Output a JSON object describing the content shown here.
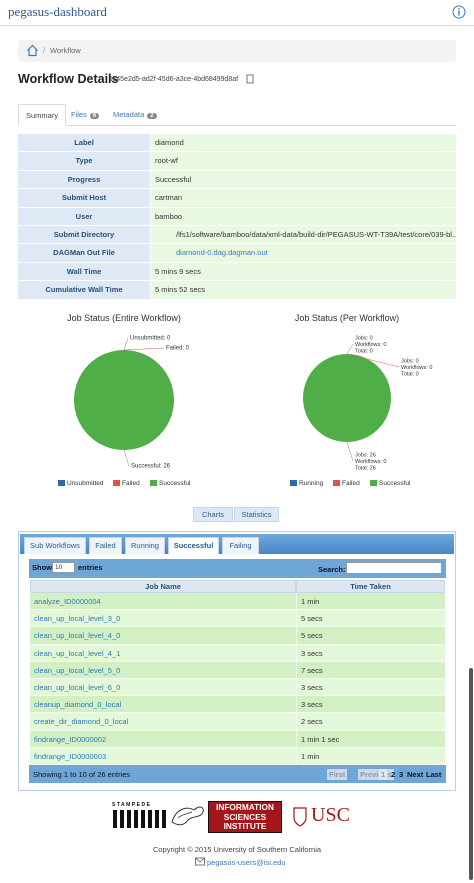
{
  "header": {
    "title": "pegasus-dashboard"
  },
  "breadcrumb": {
    "separator": "/",
    "current": "Workflow"
  },
  "workflow": {
    "title": "Workflow Details",
    "id": "1145e2d5-ad2f-45d6-a3ce-4bd68499d8af"
  },
  "tabs": [
    {
      "label": "Summary"
    },
    {
      "label": "Files",
      "badge": 6
    },
    {
      "label": "Metadata",
      "badge": 2
    }
  ],
  "summary": {
    "rows": [
      [
        "Label",
        "diamond"
      ],
      [
        "Type",
        "root-wf"
      ],
      [
        "Progress",
        "Successful"
      ],
      [
        "Submit Host",
        "cartman"
      ],
      [
        "User",
        "bamboo"
      ],
      [
        "Submit Directory",
        "/lfs1/software/bamboo/data/xml-data/build-dir/PEGASUS-WT-T39A/test/core/039-bl..."
      ],
      [
        "DAGMan Out File",
        "diamond-0.dag.dagman.out"
      ],
      [
        "Wall Time",
        "5 mins 9 secs"
      ],
      [
        "Cumulative Wall Time",
        "5 mins 52 secs"
      ]
    ]
  },
  "chart_data": [
    {
      "type": "pie",
      "title": "Job Status (Entire Workflow)",
      "categories": [
        "Unsubmitted",
        "Failed",
        "Successful"
      ],
      "values": [
        0,
        0,
        26
      ],
      "value_labels": [
        "Unsubmitted: 0",
        "Failed: 0",
        "Successful: 26"
      ],
      "colors": [
        "#2e6aa5",
        "#d9534f",
        "#4fae47"
      ]
    },
    {
      "type": "pie",
      "title": "Job Status (Per Workflow)",
      "categories": [
        "Running",
        "Failed",
        "Successful"
      ],
      "values": [
        0,
        0,
        26
      ],
      "value_labels": [
        [
          "Jobs: 0",
          "Workflows: 0",
          "Total: 0"
        ],
        [
          "Jobs: 0",
          "Workflows: 0",
          "Total: 0"
        ],
        [
          "Jobs: 26",
          "Workflows: 0",
          "Total: 26"
        ]
      ],
      "colors": [
        "#2e6aa5",
        "#d9534f",
        "#4fae47"
      ]
    }
  ],
  "chart_buttons": [
    "Charts",
    "Statistics"
  ],
  "job_tabs": [
    "Sub Workflows",
    "Failed",
    "Running",
    "Successful",
    "Failing"
  ],
  "job_table": {
    "show": "Show",
    "page_size": "10",
    "entries": "entries",
    "search": "Search:",
    "columns": [
      "Job Name",
      "Time Taken"
    ],
    "rows": [
      [
        "analyze_ID0000004",
        "1 min"
      ],
      [
        "clean_up_local_level_3_0",
        "5 secs"
      ],
      [
        "clean_up_local_level_4_0",
        "5 secs"
      ],
      [
        "clean_up_local_level_4_1",
        "3 secs"
      ],
      [
        "clean_up_local_level_5_0",
        "7 secs"
      ],
      [
        "clean_up_local_level_6_0",
        "3 secs"
      ],
      [
        "cleanup_diamond_0_local",
        "3 secs"
      ],
      [
        "create_dir_diamond_0_local",
        "2 secs"
      ],
      [
        "findrange_ID0000002",
        "1 min 1 sec"
      ],
      [
        "findrange_ID0000003",
        "1 min"
      ]
    ],
    "info": "Showing 1 to 10 of 26 entries",
    "pagination": [
      "First",
      "Previous",
      "1",
      "2",
      "3",
      "Next",
      "Last"
    ]
  },
  "footer": {
    "logos": [
      "STAMPEDE",
      "INFORMATION",
      "SCIENCES",
      "INSTITUTE",
      "USC"
    ],
    "copyright": "Copyright © 2015 University of Southern California",
    "email": "pegasus-users@isi.edu"
  }
}
